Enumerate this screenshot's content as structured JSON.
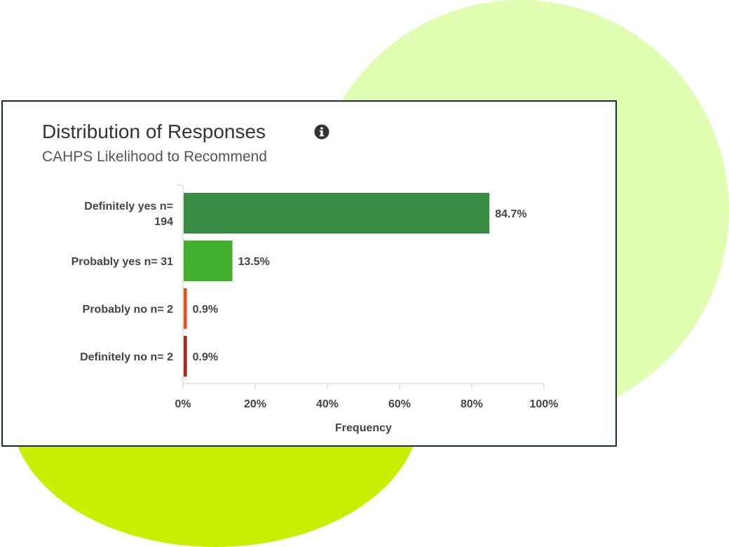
{
  "card": {
    "title": "Distribution of Responses",
    "subtitle": "CAHPS Likelihood to Recommend",
    "info_icon": "info-circle-icon"
  },
  "colors": {
    "background_blob_light": "#e0fdb1",
    "background_blob_bright": "#c8ef00",
    "card_border": "#1b2a38",
    "definitely_yes": "#3b8c43",
    "probably_yes": "#43af2f",
    "probably_no": "#e0522a",
    "definitely_no": "#a12a1d"
  },
  "chart_data": {
    "type": "bar",
    "orientation": "horizontal",
    "categories": [
      [
        "Definitely yes n=",
        "194"
      ],
      [
        "Probably yes n= 31"
      ],
      [
        "Probably no n= 2"
      ],
      [
        "Definitely no n= 2"
      ]
    ],
    "values": [
      84.7,
      13.5,
      0.9,
      0.9
    ],
    "value_labels": [
      "84.7%",
      "13.5%",
      "0.9%",
      "0.9%"
    ],
    "bar_colors": [
      "#3b8c43",
      "#43af2f",
      "#e0522a",
      "#a12a1d"
    ],
    "xlim": [
      0,
      100
    ],
    "xticks": [
      0,
      20,
      40,
      60,
      80,
      100
    ],
    "xtick_labels": [
      "0%",
      "20%",
      "40%",
      "60%",
      "80%",
      "100%"
    ],
    "xlabel": "Frequency",
    "ylabel": "",
    "grid": false,
    "legend": false
  }
}
